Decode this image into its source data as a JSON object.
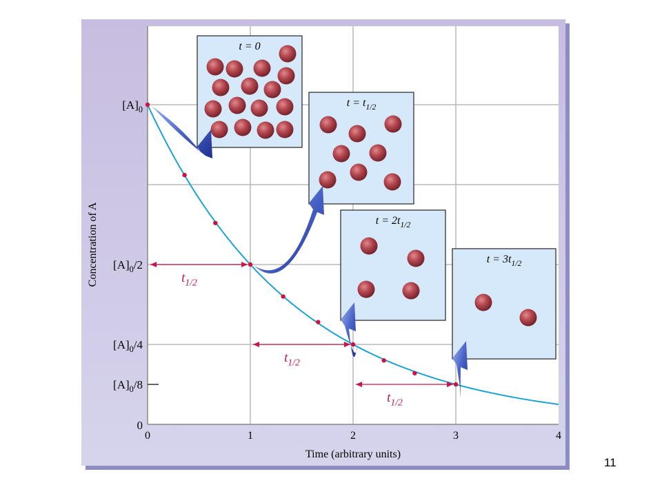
{
  "page_number": "11",
  "colors": {
    "panel_fill": "#c9c0e1",
    "panel_shadow": "#8d8dc4",
    "plot_bg": "#ffffff",
    "grid": "#b9b9b9",
    "curve": "#1ca2d4",
    "marker": "#cc1144",
    "arrow": "#c8154a",
    "box_fill": "#d6e9fb",
    "molecule": "#b0464e",
    "callout_arrow": "#3550b8"
  },
  "chart_data": {
    "type": "line",
    "xlabel": "Time (arbitrary units)",
    "ylabel": "Concentration of A",
    "xlim": [
      0,
      4
    ],
    "ylim": [
      0,
      1.24
    ],
    "x_ticks": [
      "0",
      "1",
      "2",
      "3",
      "4"
    ],
    "y_ticks": [
      {
        "value": 1.0,
        "label": "[A]",
        "sub": "0",
        "suffix": ""
      },
      {
        "value": 0.5,
        "label": "[A]",
        "sub": "0",
        "suffix": "/2"
      },
      {
        "value": 0.25,
        "label": "[A]",
        "sub": "0",
        "suffix": "/4"
      },
      {
        "value": 0.125,
        "label": "[A]",
        "sub": "0",
        "suffix": "/8"
      },
      {
        "value": 0,
        "label": "0",
        "sub": "",
        "suffix": ""
      }
    ],
    "grid": true,
    "x_gridlines": [
      1,
      2,
      3
    ],
    "y_gridlines": [
      0.5,
      0.25,
      0.75
    ],
    "curve": {
      "function": "exponential decay",
      "initial": 1.0,
      "half_life": 1.0,
      "x_range": [
        0,
        4
      ]
    },
    "marked_points": [
      {
        "x": 0,
        "y": 1.0
      },
      {
        "x": 0.36,
        "y": 0.78
      },
      {
        "x": 0.66,
        "y": 0.63
      },
      {
        "x": 1.0,
        "y": 0.5
      },
      {
        "x": 1.32,
        "y": 0.4
      },
      {
        "x": 1.66,
        "y": 0.32
      },
      {
        "x": 2.0,
        "y": 0.25
      },
      {
        "x": 2.3,
        "y": 0.2
      },
      {
        "x": 2.6,
        "y": 0.16
      },
      {
        "x": 3.0,
        "y": 0.125
      }
    ],
    "half_life_arrows": [
      {
        "x_start": 0,
        "x_end": 1,
        "y": 0.5,
        "label": "t",
        "sub": "1/2"
      },
      {
        "x_start": 1,
        "x_end": 2,
        "y": 0.25,
        "label": "t",
        "sub": "1/2"
      },
      {
        "x_start": 2,
        "x_end": 3,
        "y": 0.125,
        "label": "t",
        "sub": "1/2"
      }
    ],
    "insets": [
      {
        "label": "t = 0",
        "from_point": {
          "x": 0,
          "y": 1.0
        },
        "molecule_count": 16
      },
      {
        "label": "t = t",
        "sub": "1/2",
        "from_point": {
          "x": 1,
          "y": 0.5
        },
        "molecule_count": 8
      },
      {
        "label": "t = 2t",
        "sub": "1/2",
        "from_point": {
          "x": 2,
          "y": 0.25
        },
        "molecule_count": 4
      },
      {
        "label": "t = 3t",
        "sub": "1/2",
        "from_point": {
          "x": 3,
          "y": 0.125
        },
        "molecule_count": 2
      }
    ]
  }
}
